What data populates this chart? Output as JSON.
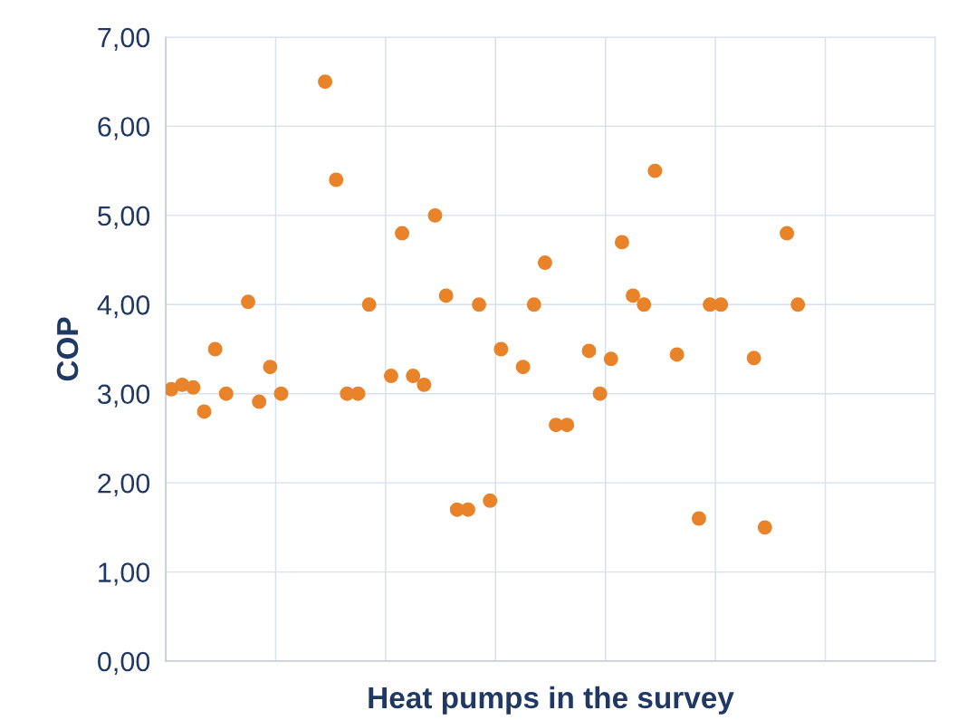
{
  "chart_data": {
    "type": "scatter",
    "xlabel": "Heat pumps in the survey",
    "ylabel": "COP",
    "categories": [
      null,
      null,
      null,
      null,
      null,
      null,
      null,
      null,
      null,
      null,
      null,
      null,
      null,
      null,
      null,
      null,
      null,
      null,
      null,
      null,
      null,
      null,
      null,
      null,
      null,
      null,
      null,
      null,
      null,
      null,
      null,
      null,
      null,
      null,
      null,
      null,
      null,
      null,
      null,
      null,
      null,
      null,
      null,
      null,
      null,
      null,
      null,
      null,
      null,
      null,
      null,
      null,
      null,
      null,
      null,
      null,
      null,
      null,
      null,
      null,
      null,
      null,
      null,
      null,
      null,
      null,
      null,
      null,
      null,
      null
    ],
    "series": [
      {
        "color": "#e8832a",
        "values": [
          3.05,
          3.1,
          3.07,
          2.8,
          3.5,
          3.0,
          null,
          4.03,
          2.91,
          3.3,
          3.0,
          null,
          null,
          null,
          6.5,
          5.4,
          3.0,
          3.0,
          4.0,
          null,
          3.2,
          4.8,
          3.2,
          3.1,
          5.0,
          4.1,
          1.7,
          1.7,
          4.0,
          1.8,
          3.5,
          null,
          3.3,
          4.0,
          4.47,
          2.65,
          2.65,
          null,
          3.48,
          3.0,
          3.39,
          4.7,
          4.1,
          4.0,
          5.5,
          null,
          3.44,
          null,
          1.6,
          4.0,
          4.0,
          null,
          null,
          3.4,
          1.5,
          null,
          4.8,
          4.0,
          null,
          null,
          null,
          null,
          null,
          null,
          null,
          null,
          null,
          null,
          null,
          null
        ]
      }
    ],
    "ylim": [
      0,
      7
    ],
    "yticks": [
      {
        "value": 0,
        "label": "0,00"
      },
      {
        "value": 1,
        "label": "1,00"
      },
      {
        "value": 2,
        "label": "2,00"
      },
      {
        "value": 3,
        "label": "3,00"
      },
      {
        "value": 4,
        "label": "4,00"
      },
      {
        "value": 5,
        "label": "5,00"
      },
      {
        "value": 6,
        "label": "6,00"
      },
      {
        "value": 7,
        "label": "7,00"
      }
    ],
    "grid": true,
    "tick_labels": "y",
    "marker": "circle"
  }
}
